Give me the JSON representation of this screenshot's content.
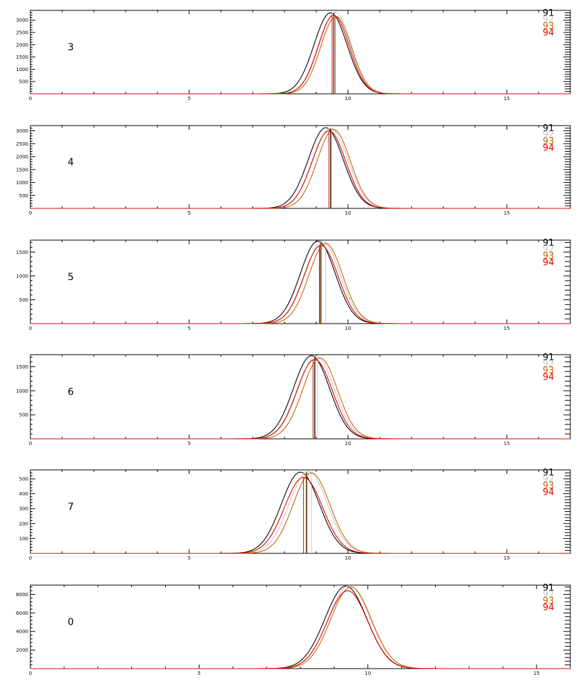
{
  "colors": {
    "axis": "#000000",
    "series": [
      "#000000",
      "#c8c8c8",
      "#c86400",
      "#e10000"
    ]
  },
  "chart_data": [
    {
      "type": "line",
      "panel_label": "3",
      "xlim": [
        0,
        17
      ],
      "ylim": [
        0,
        3400
      ],
      "xticks": [
        0,
        5,
        10,
        15
      ],
      "yticks": [
        500,
        1000,
        1500,
        2000,
        2500,
        3000
      ],
      "legend": [
        "91",
        "92",
        "93",
        "94"
      ],
      "series": [
        {
          "name": "91",
          "peak_x": 9.45,
          "peak_y": 3300,
          "width": 0.52,
          "marker_x": 9.55
        },
        {
          "name": "92",
          "peak_x": 9.6,
          "peak_y": 3330,
          "width": 0.5,
          "marker_x": 9.58
        },
        {
          "name": "93",
          "peak_x": 9.62,
          "peak_y": 3150,
          "width": 0.48,
          "marker_x": 9.6
        },
        {
          "name": "94",
          "peak_x": 9.55,
          "peak_y": 3200,
          "width": 0.49,
          "marker_x": 9.5
        }
      ]
    },
    {
      "type": "line",
      "panel_label": "4",
      "xlim": [
        0,
        17
      ],
      "ylim": [
        0,
        3200
      ],
      "xticks": [
        0,
        5,
        10,
        15
      ],
      "yticks": [
        500,
        1000,
        1500,
        2000,
        2500,
        3000
      ],
      "legend": [
        "91",
        "92",
        "93",
        "94"
      ],
      "series": [
        {
          "name": "91",
          "peak_x": 9.3,
          "peak_y": 3120,
          "width": 0.55,
          "marker_x": 9.45
        },
        {
          "name": "92",
          "peak_x": 9.45,
          "peak_y": 3100,
          "width": 0.55,
          "marker_x": 9.48
        },
        {
          "name": "93",
          "peak_x": 9.55,
          "peak_y": 3050,
          "width": 0.52,
          "marker_x": 9.47
        },
        {
          "name": "94",
          "peak_x": 9.4,
          "peak_y": 3000,
          "width": 0.53,
          "marker_x": 9.4
        }
      ]
    },
    {
      "type": "line",
      "panel_label": "5",
      "xlim": [
        0,
        17
      ],
      "ylim": [
        0,
        1750
      ],
      "xticks": [
        0,
        5,
        10,
        15
      ],
      "yticks": [
        500,
        1000,
        1500
      ],
      "legend": [
        "91",
        "92",
        "93",
        "94"
      ],
      "series": [
        {
          "name": "91",
          "peak_x": 9.05,
          "peak_y": 1730,
          "width": 0.55,
          "marker_x": 9.15
        },
        {
          "name": "92",
          "peak_x": 9.2,
          "peak_y": 1720,
          "width": 0.55,
          "marker_x": 9.3
        },
        {
          "name": "93",
          "peak_x": 9.3,
          "peak_y": 1680,
          "width": 0.53,
          "marker_x": 9.12
        },
        {
          "name": "94",
          "peak_x": 9.15,
          "peak_y": 1640,
          "width": 0.54,
          "marker_x": 9.1
        }
      ]
    },
    {
      "type": "line",
      "panel_label": "6",
      "xlim": [
        0,
        17
      ],
      "ylim": [
        0,
        1750
      ],
      "xticks": [
        0,
        5,
        10,
        15
      ],
      "yticks": [
        500,
        1000,
        1500
      ],
      "legend": [
        "91",
        "92",
        "93",
        "94"
      ],
      "series": [
        {
          "name": "91",
          "peak_x": 8.85,
          "peak_y": 1730,
          "width": 0.57,
          "marker_x": 8.95
        },
        {
          "name": "92",
          "peak_x": 9.0,
          "peak_y": 1720,
          "width": 0.57,
          "marker_x": 9.05
        },
        {
          "name": "93",
          "peak_x": 9.12,
          "peak_y": 1680,
          "width": 0.55,
          "marker_x": 8.97
        },
        {
          "name": "94",
          "peak_x": 8.95,
          "peak_y": 1650,
          "width": 0.56,
          "marker_x": 8.9
        }
      ]
    },
    {
      "type": "line",
      "panel_label": "7",
      "xlim": [
        0,
        17
      ],
      "ylim": [
        0,
        560
      ],
      "xticks": [
        0,
        5,
        10,
        15
      ],
      "yticks": [
        100,
        200,
        300,
        400,
        500
      ],
      "legend": [
        "91",
        "92",
        "93",
        "94"
      ],
      "series": [
        {
          "name": "91",
          "peak_x": 8.5,
          "peak_y": 545,
          "width": 0.6,
          "marker_x": 8.7
        },
        {
          "name": "92",
          "peak_x": 8.75,
          "peak_y": 550,
          "width": 0.6,
          "marker_x": 8.85
        },
        {
          "name": "93",
          "peak_x": 8.85,
          "peak_y": 540,
          "width": 0.58,
          "marker_x": 8.68
        },
        {
          "name": "94",
          "peak_x": 8.6,
          "peak_y": 510,
          "width": 0.6,
          "marker_x": 8.6
        }
      ]
    },
    {
      "type": "line",
      "panel_label": "0",
      "xlim": [
        0,
        16
      ],
      "ylim": [
        0,
        9000
      ],
      "xticks": [
        0,
        5,
        10,
        15
      ],
      "yticks": [
        2000,
        4000,
        6000,
        8000
      ],
      "legend": [
        "91",
        "92",
        "93",
        "94"
      ],
      "series": [
        {
          "name": "91",
          "peak_x": 9.35,
          "peak_y": 8900,
          "width": 0.62
        },
        {
          "name": "92",
          "peak_x": 9.45,
          "peak_y": 8950,
          "width": 0.62
        },
        {
          "name": "93",
          "peak_x": 9.5,
          "peak_y": 8800,
          "width": 0.6
        },
        {
          "name": "94",
          "peak_x": 9.4,
          "peak_y": 8400,
          "width": 0.6
        }
      ]
    }
  ]
}
